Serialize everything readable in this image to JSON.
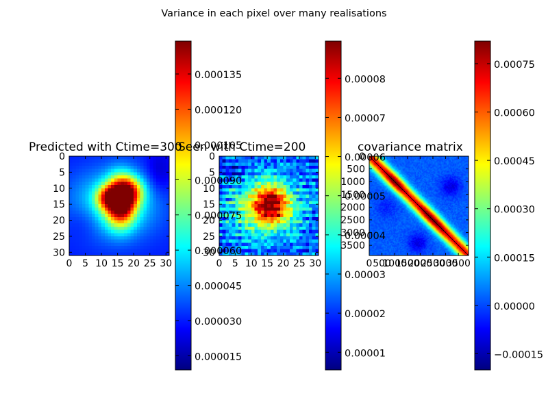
{
  "figure": {
    "suptitle": "Variance in each pixel over many realisations"
  },
  "colormap": [
    "#00007f",
    "#0000ff",
    "#007fff",
    "#00ffff",
    "#7fff7f",
    "#ffff00",
    "#ff7f00",
    "#ff0000",
    "#7f0000"
  ],
  "chart_data": [
    {
      "type": "heatmap",
      "title": "Predicted with Ctime=",
      "title_overlap_fragment": "300",
      "xticks": [
        "0",
        "5",
        "10",
        "15",
        "20",
        "25",
        "30"
      ],
      "yticks": [
        "0",
        "5",
        "10",
        "15",
        "20",
        "25",
        "30"
      ],
      "range": [
        0,
        31
      ],
      "value_range": [
        9e-06,
        0.000149
      ],
      "colorbar_ticks": [
        "0.000015",
        "0.000030",
        "0.000045",
        "0.000060",
        "0.000075",
        "0.000090",
        "0.000105",
        "0.000120",
        "0.000135"
      ],
      "colorbar_values": [
        1.5e-05,
        3e-05,
        4.5e-05,
        6e-05,
        7.5e-05,
        9e-05,
        0.000105,
        0.00012,
        0.000135
      ],
      "colorbar_hidden_labels": [
        "0.000060",
        "0.000075",
        "0.000090"
      ],
      "field": {
        "background": 3e-05,
        "blobs": [
          {
            "cx": 16,
            "cy": 14,
            "sx": 3.0,
            "sy": 5.0,
            "amp": 0.000115
          },
          {
            "cx": 12,
            "cy": 13,
            "sx": 2.5,
            "sy": 2.5,
            "amp": 6e-05
          },
          {
            "cx": 19,
            "cy": 11,
            "sx": 3.0,
            "sy": 3.0,
            "amp": 5e-05
          },
          {
            "cx": 14,
            "cy": 15,
            "sx": 9.0,
            "sy": 7.0,
            "amp": 4e-05
          },
          {
            "cx": 5,
            "cy": 20,
            "sx": 4.0,
            "sy": 4.0,
            "amp": -1e-05
          },
          {
            "cx": 28,
            "cy": 5,
            "sx": 3.0,
            "sy": 5.0,
            "amp": -1.2e-05
          }
        ]
      }
    },
    {
      "type": "heatmap",
      "title": "Seen with Ctime=2",
      "title_overlap_fragment": "00",
      "xticks": [
        "0",
        "5",
        "10",
        "15",
        "20",
        "25",
        "30"
      ],
      "yticks": [
        "0",
        "5",
        "10",
        "15",
        "20",
        "25",
        "30"
      ],
      "range": [
        0,
        31
      ],
      "value_range": [
        5.5e-06,
        8.95e-05
      ],
      "colorbar_ticks": [
        "0.00001",
        "0.00002",
        "0.00003",
        "0.00004",
        "0.00005",
        "0.00006",
        "0.00007",
        "0.00008"
      ],
      "colorbar_values": [
        1e-05,
        2e-05,
        3e-05,
        4e-05,
        5e-05,
        6e-05,
        7e-05,
        8e-05
      ],
      "colorbar_hidden_labels": [
        "0.00004",
        "0.00005"
      ],
      "field": {
        "background": 2.2e-05,
        "blobs": [
          {
            "cx": 16,
            "cy": 15,
            "sx": 4.0,
            "sy": 4.0,
            "amp": 4e-05
          },
          {
            "cx": 14,
            "cy": 16,
            "sx": 8.0,
            "sy": 7.0,
            "amp": 3e-05
          },
          {
            "cx": 5,
            "cy": 5,
            "sx": 4.0,
            "sy": 3.0,
            "amp": -8e-06
          }
        ],
        "stripe_amp": 1.2e-05
      }
    },
    {
      "type": "heatmap",
      "title": "covariance matrix",
      "xticks": [
        "0",
        "500",
        "1000",
        "1500",
        "2000",
        "2500",
        "3000",
        "3500"
      ],
      "yticks": [
        "0",
        "500",
        "1000",
        "1500",
        "2000",
        "2500",
        "3000",
        "3500"
      ],
      "range": [
        0,
        3900
      ],
      "value_range": [
        -0.0002,
        0.00082
      ],
      "colorbar_ticks": [
        "−0.00015",
        "0.00000",
        "0.00015",
        "0.00030",
        "0.00045",
        "0.00060",
        "0.00075"
      ],
      "colorbar_values": [
        -0.00015,
        0.0,
        0.00015,
        0.0003,
        0.00045,
        0.0006,
        0.00075
      ],
      "colorbar_hidden_labels": [
        "0.00000",
        "0.00006"
      ],
      "field": {
        "diag_peak": 0.00068,
        "diag_width": 260,
        "background": 2e-05,
        "hot_spots": [
          {
            "c": 1000,
            "amp": 0.00014
          },
          {
            "c": 2300,
            "amp": 0.0001
          },
          {
            "c": 2700,
            "amp": 8e-05
          }
        ],
        "cold_spots": [
          {
            "cx": 3200,
            "cy": 1200,
            "s": 280,
            "amp": -0.00012
          },
          {
            "cx": 1900,
            "cy": 3400,
            "s": 260,
            "amp": -0.00012
          },
          {
            "cx": 700,
            "cy": 2000,
            "s": 300,
            "amp": -6e-05
          }
        ]
      }
    }
  ]
}
